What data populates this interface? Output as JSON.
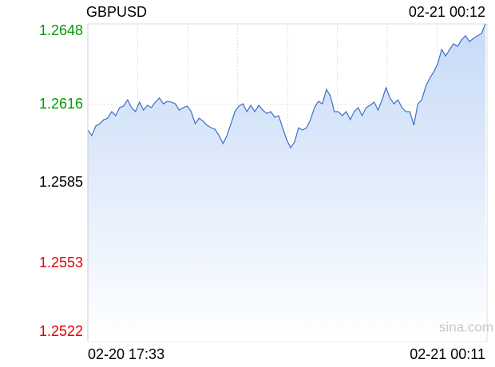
{
  "chart_data": {
    "type": "area",
    "title": "GBPUSD",
    "timestamp": "02-21 00:12",
    "watermark": "sina.com",
    "color": "#3d6fc4",
    "ylim": [
      1.2522,
      1.2648
    ],
    "yticks": [
      1.2522,
      1.2553,
      1.2585,
      1.2616,
      1.2648
    ],
    "ytick_colors": [
      "#dd0000",
      "#dd0000",
      "#000000",
      "#009900",
      "#009900"
    ],
    "grid": true,
    "categories": [
      "02-20 17:33",
      null,
      null,
      null,
      null,
      null,
      null,
      null,
      null,
      null,
      null,
      null,
      null,
      null,
      null,
      null,
      null,
      null,
      null,
      null,
      null,
      null,
      null,
      null,
      null,
      null,
      null,
      null,
      null,
      null,
      null,
      null,
      null,
      null,
      null,
      null,
      null,
      null,
      null,
      null,
      null,
      null,
      null,
      null,
      null,
      null,
      null,
      null,
      null,
      null,
      null,
      null,
      null,
      null,
      null,
      null,
      null,
      null,
      null,
      null,
      null,
      null,
      null,
      null,
      null,
      null,
      null,
      null,
      null,
      null,
      null,
      null,
      null,
      null,
      null,
      null,
      null,
      null,
      null,
      null,
      null,
      null,
      null,
      null,
      null,
      null,
      null,
      null,
      null,
      null,
      null,
      null,
      null,
      null,
      null,
      null,
      null,
      null,
      null,
      null,
      "02-21 00:11"
    ],
    "values": [
      1.26059,
      1.26037,
      1.26075,
      1.26084,
      1.261,
      1.26106,
      1.26132,
      1.26116,
      1.26148,
      1.26154,
      1.26179,
      1.26148,
      1.26132,
      1.2617,
      1.26138,
      1.26157,
      1.26148,
      1.2617,
      1.26186,
      1.26163,
      1.26173,
      1.2617,
      1.26163,
      1.26138,
      1.26148,
      1.26154,
      1.26132,
      1.26084,
      1.26106,
      1.26094,
      1.26078,
      1.26068,
      1.26062,
      1.26037,
      1.26005,
      1.26037,
      1.26084,
      1.26132,
      1.26154,
      1.26163,
      1.26132,
      1.26157,
      1.26132,
      1.26157,
      1.26138,
      1.26125,
      1.26132,
      1.2611,
      1.26116,
      1.26068,
      1.26021,
      1.25989,
      1.26011,
      1.26068,
      1.26059,
      1.26068,
      1.261,
      1.26148,
      1.26173,
      1.26163,
      1.2622,
      1.26195,
      1.26132,
      1.26132,
      1.26116,
      1.26132,
      1.261,
      1.26132,
      1.26148,
      1.26116,
      1.26148,
      1.26157,
      1.2617,
      1.26138,
      1.26179,
      1.26227,
      1.26186,
      1.26163,
      1.26179,
      1.26148,
      1.26132,
      1.26132,
      1.26078,
      1.26163,
      1.26179,
      1.26233,
      1.26265,
      1.2629,
      1.26322,
      1.26379,
      1.26353,
      1.26379,
      1.26401,
      1.26391,
      1.26417,
      1.26433,
      1.2641,
      1.26423,
      1.26433,
      1.26442,
      1.2648
    ]
  }
}
